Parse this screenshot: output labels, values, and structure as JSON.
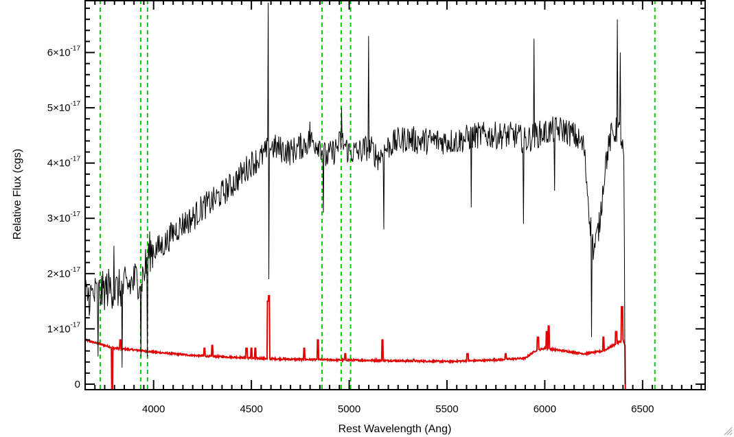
{
  "chart_data": {
    "type": "line",
    "title": "",
    "xlabel": "Rest Wavelength (Ang)",
    "ylabel": "Relative Flux (cgs)",
    "xlim": [
      3650,
      6820
    ],
    "ylim": [
      -1e-18,
      6.95e-17
    ],
    "x_major_ticks": [
      {
        "value": 4000,
        "label": "4000"
      },
      {
        "value": 4500,
        "label": "4500"
      },
      {
        "value": 5000,
        "label": "5000"
      },
      {
        "value": 5500,
        "label": "5500"
      },
      {
        "value": 6000,
        "label": "6000"
      },
      {
        "value": 6500,
        "label": "6500"
      }
    ],
    "x_minor_step": 50,
    "y_major_ticks": [
      {
        "value": 0,
        "mantissa": "0",
        "exponent": ""
      },
      {
        "value": 1e-17,
        "mantissa": "1×10",
        "exponent": "-17"
      },
      {
        "value": 2e-17,
        "mantissa": "2×10",
        "exponent": "-17"
      },
      {
        "value": 3e-17,
        "mantissa": "3×10",
        "exponent": "-17"
      },
      {
        "value": 4e-17,
        "mantissa": "4×10",
        "exponent": "-17"
      },
      {
        "value": 5e-17,
        "mantissa": "5×10",
        "exponent": "-17"
      },
      {
        "value": 6e-17,
        "mantissa": "6×10",
        "exponent": "-17"
      }
    ],
    "y_minor_step": 2e-18,
    "grid": false,
    "legend": "none",
    "colors": {
      "flux": "#000000",
      "error": "#e00000",
      "lines": "#00cc00",
      "axes": "#000000"
    },
    "vertical_lines": [
      3727,
      3934,
      3969,
      4861,
      4959,
      5007,
      6563
    ],
    "series": [
      {
        "role": "flux",
        "x": [
          3650,
          3690,
          3730,
          3770,
          3810,
          3850,
          3880,
          3910,
          3945,
          3980,
          4020,
          4060,
          4100,
          4150,
          4200,
          4250,
          4300,
          4350,
          4400,
          4450,
          4500,
          4550,
          4575,
          4600,
          4650,
          4700,
          4750,
          4800,
          4850,
          4880,
          4920,
          4960,
          5000,
          5050,
          5100,
          5150,
          5200,
          5250,
          5300,
          5350,
          5400,
          5450,
          5500,
          5550,
          5600,
          5650,
          5700,
          5750,
          5800,
          5850,
          5900,
          5950,
          6000,
          6050,
          6100,
          6150,
          6200,
          6230,
          6250,
          6280,
          6310,
          6340,
          6370,
          6390,
          6405,
          6410
        ],
        "y": [
          1.6e-17,
          1.6e-17,
          1.65e-17,
          1.75e-17,
          1.7e-17,
          1.75e-17,
          1.8e-17,
          1.9e-17,
          1.95e-17,
          2.4e-17,
          2.45e-17,
          2.55e-17,
          2.75e-17,
          2.9e-17,
          3e-17,
          3.2e-17,
          3.3e-17,
          3.45e-17,
          3.6e-17,
          3.8e-17,
          4e-17,
          4.1e-17,
          4.2e-17,
          4.3e-17,
          4.25e-17,
          4.2e-17,
          4.3e-17,
          4.4e-17,
          4.35e-17,
          4.1e-17,
          4.2e-17,
          4.4e-17,
          4.2e-17,
          4.2e-17,
          4.3e-17,
          4.1e-17,
          4.3e-17,
          4.4e-17,
          4.45e-17,
          4.4e-17,
          4.4e-17,
          4.4e-17,
          4.4e-17,
          4.4e-17,
          4.45e-17,
          4.5e-17,
          4.5e-17,
          4.5e-17,
          4.5e-17,
          4.5e-17,
          4.4e-17,
          4.5e-17,
          4.55e-17,
          4.6e-17,
          4.6e-17,
          4.5e-17,
          4.3e-17,
          3e-17,
          2.4e-17,
          2.9e-17,
          4e-17,
          4.5e-17,
          4.6e-17,
          4.5e-17,
          4e-17,
          0
        ],
        "features": [
          {
            "x": 3715,
            "y": 5e-18
          },
          {
            "x": 3798,
            "y": 2.5e-17
          },
          {
            "x": 3840,
            "y": 3e-18
          },
          {
            "x": 3935,
            "y": 5e-18
          },
          {
            "x": 3968,
            "y": 5e-18
          },
          {
            "x": 4585,
            "y": 6.9e-17
          },
          {
            "x": 4588,
            "y": 1.9e-17
          },
          {
            "x": 4800,
            "y": 4.75e-17
          },
          {
            "x": 4868,
            "y": 3.1e-17
          },
          {
            "x": 4960,
            "y": 5e-17
          },
          {
            "x": 5098,
            "y": 6.3e-17
          },
          {
            "x": 5178,
            "y": 2.8e-17
          },
          {
            "x": 5625,
            "y": 3.2e-17
          },
          {
            "x": 5890,
            "y": 2.9e-17
          },
          {
            "x": 5945,
            "y": 6.25e-17
          },
          {
            "x": 6050,
            "y": 3.5e-17
          },
          {
            "x": 6240,
            "y": 8.5e-18
          },
          {
            "x": 6370,
            "y": 6.6e-17
          },
          {
            "x": 6385,
            "y": 6e-17
          }
        ]
      },
      {
        "role": "error",
        "x": [
          3650,
          3700,
          3750,
          3800,
          3900,
          4000,
          4100,
          4200,
          4300,
          4400,
          4500,
          4700,
          4900,
          5100,
          5300,
          5500,
          5700,
          5800,
          5900,
          5950,
          6000,
          6100,
          6200,
          6300,
          6350,
          6400,
          6410,
          6412,
          6820
        ],
        "y": [
          8e-18,
          7.5e-18,
          7e-18,
          6.5e-18,
          6.2e-18,
          5.8e-18,
          5.5e-18,
          5.2e-18,
          5e-18,
          4.9e-18,
          4.7e-18,
          4.5e-18,
          4.4e-18,
          4.3e-18,
          4.2e-18,
          4.1e-18,
          4.3e-18,
          4.5e-18,
          4.7e-18,
          6e-18,
          6.5e-18,
          6e-18,
          5.5e-18,
          6e-18,
          7e-18,
          8e-18,
          7e-18,
          -1e-18,
          -1e-18
        ],
        "peaks": [
          {
            "x": 3788,
            "y": -3e-18
          },
          {
            "x": 3830,
            "y": 8e-18
          },
          {
            "x": 4260,
            "y": 6.5e-18
          },
          {
            "x": 4300,
            "y": 7e-18
          },
          {
            "x": 4475,
            "y": 6.5e-18
          },
          {
            "x": 4500,
            "y": 6.5e-18
          },
          {
            "x": 4520,
            "y": 6.5e-18
          },
          {
            "x": 4585,
            "y": 1.5e-17
          },
          {
            "x": 4590,
            "y": 1.6e-17
          },
          {
            "x": 4770,
            "y": 6.5e-18
          },
          {
            "x": 4840,
            "y": 8e-18
          },
          {
            "x": 4980,
            "y": 5.5e-18
          },
          {
            "x": 5170,
            "y": 8e-18
          },
          {
            "x": 5330,
            "y": 4.5e-18
          },
          {
            "x": 5605,
            "y": 5.5e-18
          },
          {
            "x": 5800,
            "y": 5.5e-18
          },
          {
            "x": 5965,
            "y": 8.5e-18
          },
          {
            "x": 6010,
            "y": 9.5e-18
          },
          {
            "x": 6020,
            "y": 1.05e-17
          },
          {
            "x": 6300,
            "y": 8.5e-18
          },
          {
            "x": 6365,
            "y": 9.5e-18
          },
          {
            "x": 6395,
            "y": 1.4e-17
          }
        ]
      }
    ]
  }
}
